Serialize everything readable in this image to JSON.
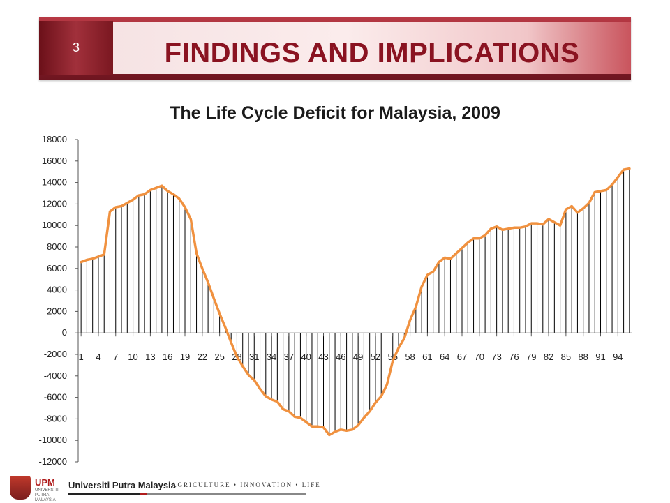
{
  "header": {
    "slide_number": "3",
    "title": "FINDINGS AND IMPLICATIONS"
  },
  "footer": {
    "logo_text": "UPM",
    "logo_subtext": "UNIVERSITI PUTRA MALAYSIA",
    "university": "Universiti Putra Malaysia",
    "tagline": "AGRICULTURE • INNOVATION • LIFE"
  },
  "colors": {
    "line": "#f0913f",
    "bars": "#000000",
    "title_red": "#8a1321"
  },
  "chart_data": {
    "type": "bar",
    "title": "The Life Cycle Deficit for Malaysia, 2009",
    "xlabel": "",
    "ylabel": "",
    "ylim": [
      -12000,
      18000
    ],
    "yticks": [
      18000,
      16000,
      14000,
      12000,
      10000,
      8000,
      6000,
      4000,
      2000,
      0,
      -2000,
      -4000,
      -6000,
      -8000,
      -10000,
      -12000
    ],
    "xtick_labels": [
      "1",
      "4",
      "7",
      "10",
      "13",
      "16",
      "19",
      "22",
      "25",
      "28",
      "31",
      "34",
      "37",
      "40",
      "43",
      "46",
      "49",
      "52",
      "55",
      "58",
      "61",
      "64",
      "67",
      "70",
      "73",
      "76",
      "79",
      "82",
      "85",
      "88",
      "91",
      "94"
    ],
    "grid": false,
    "overlay_line": true,
    "categories": [
      1,
      2,
      3,
      4,
      5,
      6,
      7,
      8,
      9,
      10,
      11,
      12,
      13,
      14,
      15,
      16,
      17,
      18,
      19,
      20,
      21,
      22,
      23,
      24,
      25,
      26,
      27,
      28,
      29,
      30,
      31,
      32,
      33,
      34,
      35,
      36,
      37,
      38,
      39,
      40,
      41,
      42,
      43,
      44,
      45,
      46,
      47,
      48,
      49,
      50,
      51,
      52,
      53,
      54,
      55,
      56,
      57,
      58,
      59,
      60,
      61,
      62,
      63,
      64,
      65,
      66,
      67,
      68,
      69,
      70,
      71,
      72,
      73,
      74,
      75,
      76,
      77,
      78,
      79,
      80,
      81,
      82,
      83,
      84,
      85,
      86,
      87,
      88,
      89,
      90,
      91,
      92,
      93,
      94,
      95,
      96
    ],
    "values": [
      6600,
      6800,
      6900,
      7100,
      7300,
      11300,
      11700,
      11800,
      12100,
      12400,
      12800,
      12900,
      13300,
      13500,
      13700,
      13200,
      12900,
      12500,
      11700,
      10600,
      7400,
      6000,
      4700,
      3200,
      1800,
      500,
      -900,
      -2200,
      -3100,
      -3900,
      -4400,
      -5200,
      -5900,
      -6200,
      -6400,
      -7100,
      -7300,
      -7800,
      -7900,
      -8300,
      -8700,
      -8700,
      -8800,
      -9500,
      -9200,
      -9000,
      -9100,
      -9000,
      -8600,
      -7900,
      -7300,
      -6500,
      -5900,
      -4800,
      -2600,
      -1400,
      -500,
      1200,
      2400,
      4300,
      5400,
      5700,
      6600,
      7000,
      6900,
      7400,
      7900,
      8400,
      8800,
      8800,
      9100,
      9700,
      9900,
      9600,
      9700,
      9800,
      9800,
      9900,
      10200,
      10200,
      10100,
      10600,
      10300,
      10000,
      11500,
      11800,
      11200,
      11600,
      12100,
      13100,
      13200,
      13300,
      13800,
      14500,
      15200,
      15300
    ]
  }
}
